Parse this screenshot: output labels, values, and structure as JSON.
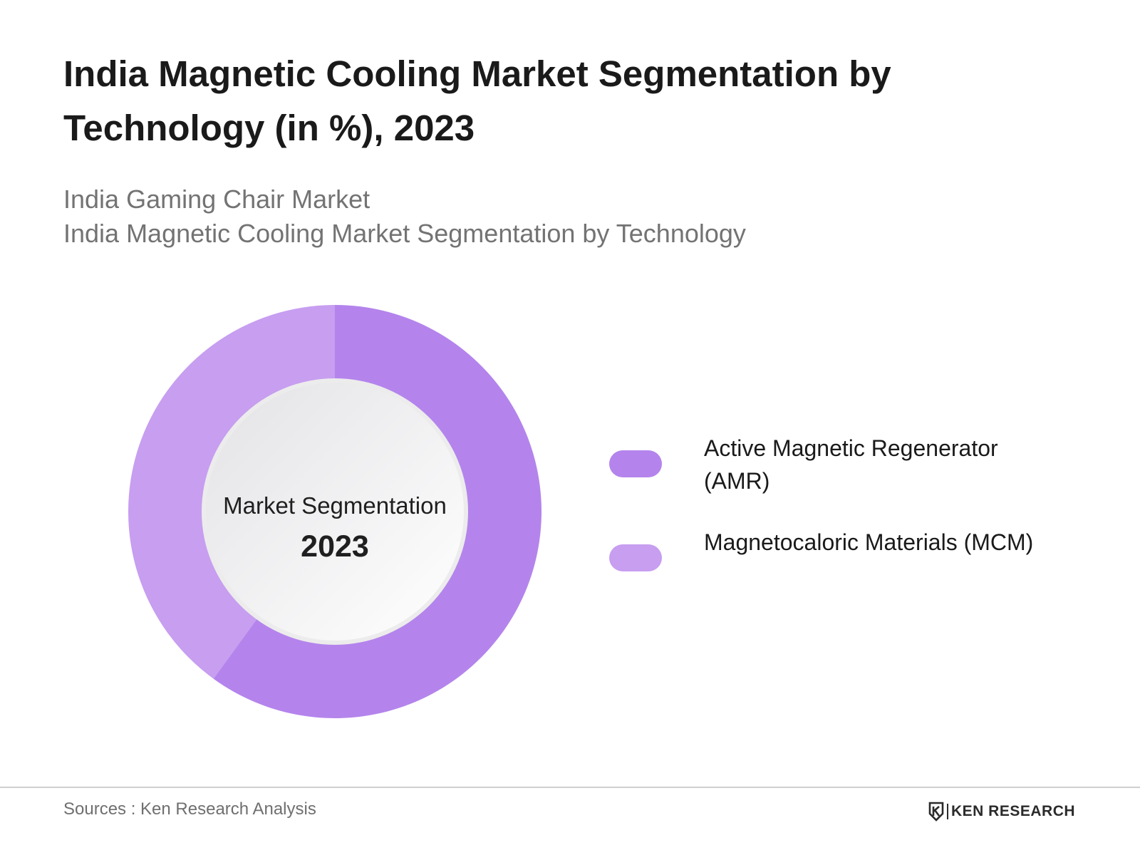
{
  "title": "India Magnetic Cooling Market Segmentation by Technology (in %), 2023",
  "subtitle_lines": [
    "India Gaming Chair Market",
    "India Magnetic Cooling Market Segmentation by Technology"
  ],
  "chart_data": {
    "type": "pie",
    "variant": "donut",
    "title": "India Magnetic Cooling Market Segmentation by Technology (in %), 2023",
    "center_label": "Market Segmentation",
    "center_year": "2023",
    "categories": [
      "Active Magnetic Regenerator (AMR)",
      "Magnetocaloric Materials (MCM)"
    ],
    "values": [
      60,
      40
    ],
    "colors": [
      "#b484ec",
      "#c79ef0"
    ],
    "legend_position": "right"
  },
  "legend": [
    {
      "label": "Active Magnetic Regenerator (AMR)",
      "color": "#b484ec"
    },
    {
      "label": "Magnetocaloric Materials (MCM)",
      "color": "#c79ef0"
    }
  ],
  "footer": {
    "source": "Sources : Ken Research Analysis",
    "brand": "KEN RESEARCH",
    "brand_icon": "ken-research-logo-icon"
  }
}
